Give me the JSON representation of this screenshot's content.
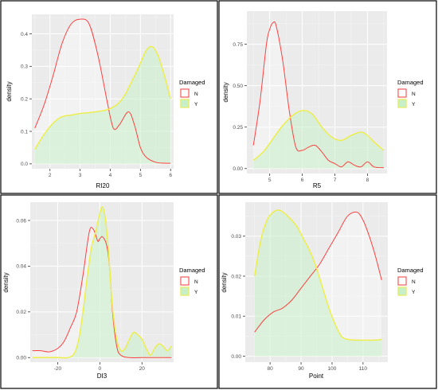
{
  "colors": {
    "N": "#ff4040",
    "Y": "#eeee44",
    "Y_fill": "#c8f0c8",
    "N_fill": "#ffffff"
  },
  "chart_data": [
    {
      "type": "area",
      "xlabel": "RI20",
      "ylabel": "density",
      "xlim": [
        1.4,
        6.1
      ],
      "ylim": [
        -0.015,
        0.46
      ],
      "xticks": [
        2,
        3,
        4,
        5,
        6
      ],
      "yticks": [
        0.0,
        0.1,
        0.2,
        0.3,
        0.4
      ],
      "ytick_labels": [
        "0.0",
        "0.1",
        "0.2",
        "0.3",
        "0.4"
      ],
      "legend": {
        "title": "Damaged",
        "labels": [
          "N",
          "Y"
        ],
        "position": "right"
      },
      "series": [
        {
          "name": "N",
          "x": [
            1.5,
            1.8,
            2.1,
            2.4,
            2.7,
            3.0,
            3.3,
            3.6,
            3.9,
            4.1,
            4.3,
            4.6,
            4.8,
            5.0,
            5.2,
            5.5,
            5.8,
            6.0
          ],
          "y": [
            0.11,
            0.18,
            0.27,
            0.37,
            0.43,
            0.445,
            0.43,
            0.33,
            0.19,
            0.11,
            0.12,
            0.16,
            0.12,
            0.05,
            0.02,
            0.005,
            0.002,
            0.002
          ]
        },
        {
          "name": "Y",
          "x": [
            1.5,
            1.8,
            2.1,
            2.4,
            2.7,
            3.0,
            3.5,
            4.0,
            4.4,
            4.8,
            5.0,
            5.2,
            5.4,
            5.6,
            5.8,
            6.0
          ],
          "y": [
            0.045,
            0.09,
            0.125,
            0.145,
            0.15,
            0.155,
            0.16,
            0.17,
            0.2,
            0.27,
            0.31,
            0.35,
            0.36,
            0.33,
            0.27,
            0.2
          ]
        }
      ]
    },
    {
      "type": "area",
      "xlabel": "R5",
      "ylabel": "density",
      "xlim": [
        4.3,
        8.6
      ],
      "ylim": [
        -0.03,
        0.95
      ],
      "xticks": [
        5,
        6,
        7,
        8
      ],
      "yticks": [
        0.0,
        0.25,
        0.5,
        0.75
      ],
      "ytick_labels": [
        "0.00",
        "0.25",
        "0.50",
        "0.75"
      ],
      "legend": {
        "title": "Damaged",
        "labels": [
          "N",
          "Y"
        ],
        "position": "right"
      },
      "series": [
        {
          "name": "N",
          "x": [
            4.5,
            4.7,
            4.9,
            5.0,
            5.1,
            5.2,
            5.4,
            5.6,
            5.8,
            6.0,
            6.2,
            6.4,
            6.6,
            6.8,
            7.0,
            7.2,
            7.4,
            7.6,
            7.8,
            8.0,
            8.2,
            8.5
          ],
          "y": [
            0.14,
            0.4,
            0.75,
            0.84,
            0.88,
            0.86,
            0.65,
            0.35,
            0.13,
            0.11,
            0.13,
            0.14,
            0.1,
            0.05,
            0.03,
            0.01,
            0.04,
            0.02,
            0.01,
            0.04,
            0.01,
            0.005
          ]
        },
        {
          "name": "Y",
          "x": [
            4.5,
            4.8,
            5.1,
            5.4,
            5.7,
            6.0,
            6.3,
            6.6,
            6.9,
            7.2,
            7.5,
            7.8,
            8.0,
            8.2,
            8.5
          ],
          "y": [
            0.05,
            0.1,
            0.18,
            0.26,
            0.32,
            0.35,
            0.33,
            0.25,
            0.19,
            0.17,
            0.2,
            0.22,
            0.2,
            0.16,
            0.11
          ]
        }
      ]
    },
    {
      "type": "area",
      "xlabel": "DI3",
      "ylabel": "density",
      "xlim": [
        -33,
        35
      ],
      "ylim": [
        -0.002,
        0.068
      ],
      "xticks": [
        -20,
        0,
        20
      ],
      "yticks": [
        0.0,
        0.02,
        0.04,
        0.06
      ],
      "ytick_labels": [
        "0.00",
        "0.02",
        "0.04",
        "0.06"
      ],
      "legend": {
        "title": "Damaged",
        "labels": [
          "N",
          "Y"
        ],
        "position": "right"
      },
      "series": [
        {
          "name": "N",
          "x": [
            -32,
            -28,
            -24,
            -20,
            -17,
            -14,
            -11,
            -8,
            -5,
            -3,
            -1,
            0,
            1,
            2,
            3,
            4,
            5,
            6,
            8,
            10,
            14,
            20,
            26,
            30,
            34
          ],
          "y": [
            0.003,
            0.003,
            0.0025,
            0.004,
            0.007,
            0.013,
            0.02,
            0.036,
            0.055,
            0.056,
            0.051,
            0.052,
            0.053,
            0.052,
            0.05,
            0.045,
            0.035,
            0.02,
            0.005,
            0.001,
            0.0,
            0.0,
            0.0,
            0.0,
            0.0
          ]
        },
        {
          "name": "Y",
          "x": [
            -32,
            -20,
            -15,
            -12,
            -10,
            -8,
            -6,
            -4,
            -2,
            0,
            1,
            2,
            3,
            4,
            5,
            6,
            8,
            10,
            12,
            14,
            16,
            18,
            20,
            22,
            24,
            26,
            28,
            30,
            32,
            34
          ],
          "y": [
            0.0,
            0.0,
            0.0,
            0.002,
            0.008,
            0.02,
            0.035,
            0.048,
            0.055,
            0.063,
            0.066,
            0.064,
            0.058,
            0.048,
            0.035,
            0.022,
            0.008,
            0.003,
            0.004,
            0.008,
            0.011,
            0.01,
            0.008,
            0.004,
            0.001,
            0.004,
            0.006,
            0.005,
            0.003,
            0.005
          ]
        }
      ]
    },
    {
      "type": "area",
      "xlabel": "Point",
      "ylabel": "density",
      "xlim": [
        72,
        118
      ],
      "ylim": [
        -0.0015,
        0.0385
      ],
      "xticks": [
        80,
        90,
        100,
        110
      ],
      "yticks": [
        0.0,
        0.01,
        0.02,
        0.03
      ],
      "ytick_labels": [
        "0.00",
        "0.01",
        "0.02",
        "0.03"
      ],
      "legend": {
        "title": "Damaged",
        "labels": [
          "N",
          "Y"
        ],
        "position": "right"
      },
      "series": [
        {
          "name": "N",
          "x": [
            75,
            78,
            81,
            84,
            87,
            90,
            93,
            96,
            99,
            102,
            105,
            108,
            110,
            112,
            114,
            116
          ],
          "y": [
            0.006,
            0.009,
            0.011,
            0.012,
            0.014,
            0.017,
            0.02,
            0.023,
            0.027,
            0.031,
            0.035,
            0.036,
            0.034,
            0.03,
            0.025,
            0.019
          ]
        },
        {
          "name": "Y",
          "x": [
            75,
            77,
            79,
            81,
            83,
            85,
            87,
            89,
            91,
            93,
            95,
            97,
            99,
            101,
            103,
            105,
            108,
            111,
            114,
            116
          ],
          "y": [
            0.02,
            0.029,
            0.034,
            0.036,
            0.0365,
            0.0355,
            0.034,
            0.032,
            0.029,
            0.026,
            0.022,
            0.017,
            0.012,
            0.008,
            0.005,
            0.0042,
            0.004,
            0.004,
            0.004,
            0.0042
          ]
        }
      ]
    }
  ]
}
